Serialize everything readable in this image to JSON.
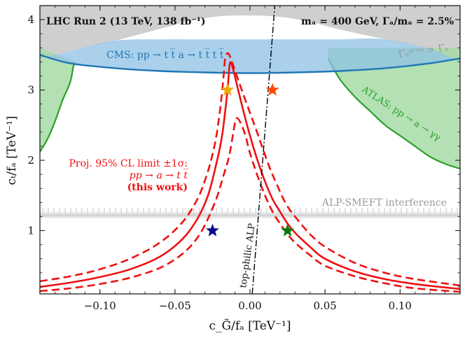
{
  "chart_data": {
    "type": "line",
    "title_left": "LHC Run 2 (13 TeV, 138 fb⁻¹)",
    "title_right": "mₐ = 400 GeV, Γₐ/mₐ = 2.5%",
    "xlabel": "c_G̃/fₐ [TeV⁻¹]",
    "ylabel": "cₜ/fₐ [TeV⁻¹]",
    "xlim": [
      -0.14,
      0.14
    ],
    "ylim": [
      0.1,
      4.2
    ],
    "xticks": [
      -0.1,
      -0.05,
      0.0,
      0.05,
      0.1
    ],
    "xtick_labels": [
      "−0.10",
      "−0.05",
      "0.00",
      "0.05",
      "0.10"
    ],
    "yticks": [
      1,
      2,
      3,
      4
    ],
    "ytick_labels": [
      "1",
      "2",
      "3",
      "4"
    ],
    "grid": false,
    "annotations": {
      "width_region": "Γₐᵖʳᵉᵈ > Γₐ",
      "cms": "CMS: pp → t t̅ a → t t̅ t t̅",
      "atlas": "ATLAS: pp → a → γγ",
      "smeft": "ALP-SMEFT interference",
      "topphilic": "top-philic ALP",
      "proj_line1": "Proj. 95% CL limit ±1σ:",
      "proj_line2": "pp → a → t t̅",
      "proj_line3": "(this work)"
    },
    "regions": {
      "width_boundary_y": [
        3.45,
        3.55,
        3.7,
        3.87,
        3.98,
        4.05,
        4.06,
        4.04,
        3.97,
        3.86,
        3.72,
        3.58,
        3.4
      ],
      "width_boundary_x": [
        -0.14,
        -0.12,
        -0.09,
        -0.06,
        -0.04,
        -0.02,
        0.0,
        0.02,
        0.04,
        0.06,
        0.09,
        0.12,
        0.14
      ],
      "cms_upper_y": 3.72,
      "cms_lower_y": [
        3.5,
        3.38,
        3.31,
        3.27,
        3.25,
        3.24,
        3.25,
        3.27,
        3.31,
        3.38,
        3.45
      ],
      "cms_x": [
        -0.14,
        -0.12,
        -0.09,
        -0.06,
        -0.03,
        0.0,
        0.03,
        0.06,
        0.09,
        0.12,
        0.14
      ],
      "atlas_left_x": [
        -0.14,
        -0.14,
        -0.135,
        -0.125,
        -0.12,
        -0.118
      ],
      "atlas_left_y": [
        2.1,
        3.55,
        3.5,
        3.4,
        3.3,
        3.2
      ],
      "atlas_left_boundary_x": [
        -0.14,
        -0.135,
        -0.13,
        -0.125,
        -0.12,
        -0.118,
        -0.117
      ],
      "atlas_left_boundary_y": [
        2.12,
        2.3,
        2.55,
        2.85,
        3.1,
        3.3,
        3.4
      ],
      "atlas_right_boundary_x": [
        0.052,
        0.06,
        0.07,
        0.08,
        0.09,
        0.1,
        0.11,
        0.12,
        0.13,
        0.14
      ],
      "atlas_right_boundary_y": [
        3.45,
        3.15,
        2.9,
        2.7,
        2.5,
        2.35,
        2.2,
        2.05,
        1.95,
        1.88
      ],
      "smeft_y": 1.22
    },
    "series": [
      {
        "name": "expected",
        "style": "solid",
        "color": "#ee1111",
        "x": [
          -0.14,
          -0.12,
          -0.1,
          -0.08,
          -0.06,
          -0.045,
          -0.035,
          -0.028,
          -0.023,
          -0.019,
          -0.0165,
          -0.0148,
          -0.0135,
          -0.012,
          -0.009,
          -0.005,
          0.0,
          0.005,
          0.01,
          0.015,
          0.02,
          0.025,
          0.03,
          0.04,
          0.05,
          0.07,
          0.09,
          0.11,
          0.14
        ],
        "y": [
          0.2,
          0.26,
          0.34,
          0.45,
          0.63,
          0.88,
          1.17,
          1.5,
          1.9,
          2.3,
          2.7,
          3.05,
          3.37,
          3.35,
          3.1,
          2.75,
          2.35,
          2.0,
          1.7,
          1.45,
          1.27,
          1.1,
          0.97,
          0.77,
          0.6,
          0.42,
          0.31,
          0.24,
          0.17
        ]
      },
      {
        "name": "plus-1-sigma",
        "style": "dashed",
        "color": "#ee1111",
        "x": [
          -0.14,
          -0.12,
          -0.1,
          -0.08,
          -0.06,
          -0.045,
          -0.035,
          -0.029,
          -0.025,
          -0.022,
          -0.0195,
          -0.0178,
          -0.0165,
          -0.0145,
          -0.012,
          -0.008,
          -0.003,
          0.003,
          0.008,
          0.013,
          0.018,
          0.024,
          0.03,
          0.04,
          0.05,
          0.07,
          0.09,
          0.11,
          0.14
        ],
        "y": [
          0.28,
          0.35,
          0.45,
          0.6,
          0.83,
          1.12,
          1.45,
          1.78,
          2.08,
          2.4,
          2.8,
          3.15,
          3.45,
          3.52,
          3.4,
          3.15,
          2.85,
          2.5,
          2.2,
          1.9,
          1.65,
          1.38,
          1.2,
          0.95,
          0.77,
          0.54,
          0.4,
          0.31,
          0.22
        ]
      },
      {
        "name": "minus-1-sigma",
        "style": "dashed",
        "color": "#ee1111",
        "x": [
          -0.14,
          -0.12,
          -0.1,
          -0.08,
          -0.06,
          -0.045,
          -0.035,
          -0.028,
          -0.022,
          -0.018,
          -0.014,
          -0.0115,
          -0.0098,
          -0.0085,
          -0.006,
          -0.003,
          0.0,
          0.005,
          0.01,
          0.015,
          0.02,
          0.025,
          0.03,
          0.04,
          0.05,
          0.07,
          0.09,
          0.11,
          0.14
        ],
        "y": [
          0.14,
          0.18,
          0.24,
          0.33,
          0.47,
          0.67,
          0.9,
          1.17,
          1.48,
          1.76,
          2.05,
          2.35,
          2.55,
          2.6,
          2.52,
          2.35,
          2.1,
          1.78,
          1.5,
          1.27,
          1.1,
          0.95,
          0.83,
          0.65,
          0.5,
          0.35,
          0.25,
          0.18,
          0.13
        ]
      },
      {
        "name": "top-philic ALP",
        "style": "dashdot",
        "color": "#000000",
        "x": [
          0.0015,
          0.0165
        ],
        "y": [
          0.1,
          4.2
        ]
      }
    ],
    "benchmarks": [
      {
        "name": "orange-star",
        "x": -0.015,
        "y": 3.0,
        "color": "#f2a900"
      },
      {
        "name": "red-star",
        "x": 0.015,
        "y": 3.0,
        "color": "#ff4d00"
      },
      {
        "name": "blue-star",
        "x": -0.025,
        "y": 1.0,
        "color": "#0a0a8c"
      },
      {
        "name": "green-star",
        "x": 0.025,
        "y": 1.0,
        "color": "#0a7a0a"
      }
    ],
    "colors": {
      "width_gray": "#cfcfcf",
      "cms_fill": "#8ec0e6",
      "cms_line": "#1f77b4",
      "atlas_fill": "#a6dca6",
      "atlas_line": "#2ca02c",
      "smeft": "#d0d0d0",
      "limit": "#ee1111",
      "text_gray": "#9a9a9a",
      "cms_text": "#1f77b4",
      "atlas_text": "#2ca02c"
    }
  }
}
